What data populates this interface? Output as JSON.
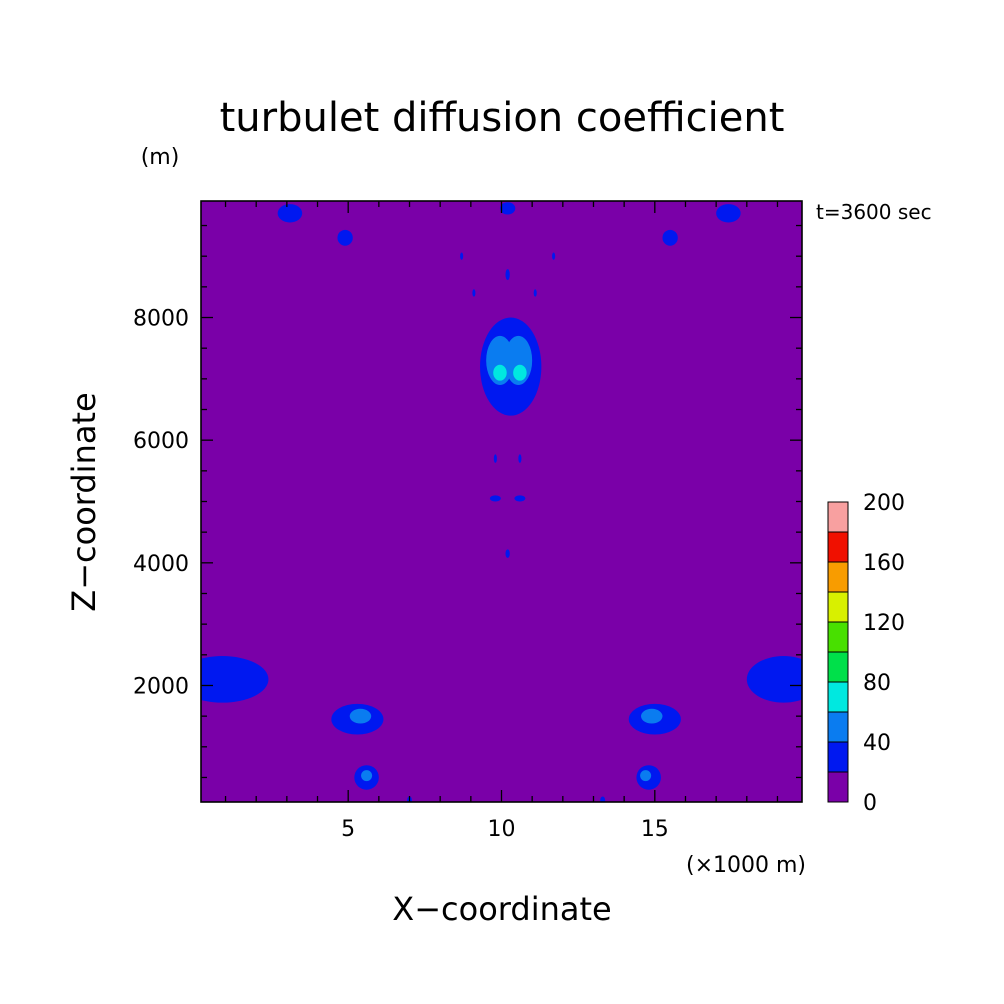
{
  "chart_data": {
    "type": "heatmap",
    "title": "turbulet diffusion coefficient",
    "xlabel": "X−coordinate",
    "ylabel": "Z−coordinate",
    "x_unit": "(×1000 m)",
    "y_unit": "(m)",
    "time_label": "t=3600 sec",
    "xlim": [
      0.2,
      19.8
    ],
    "ylim": [
      100,
      9900
    ],
    "xticks": [
      {
        "value": 5,
        "label": "5"
      },
      {
        "value": 10,
        "label": "10"
      },
      {
        "value": 15,
        "label": "15"
      }
    ],
    "yticks": [
      {
        "value": 2000,
        "label": "2000"
      },
      {
        "value": 4000,
        "label": "4000"
      },
      {
        "value": 6000,
        "label": "6000"
      },
      {
        "value": 8000,
        "label": "8000"
      }
    ],
    "colorbar": {
      "levels": [
        0,
        20,
        40,
        60,
        80,
        100,
        120,
        140,
        160,
        180,
        200
      ],
      "colors": [
        "#7a00a8",
        "#0018f0",
        "#0a7cf0",
        "#00e8e0",
        "#00e04a",
        "#48e000",
        "#d8f000",
        "#f89c00",
        "#f01000",
        "#f8a0a0"
      ],
      "labels": [
        {
          "value": 0,
          "label": "0"
        },
        {
          "value": 40,
          "label": "40"
        },
        {
          "value": 80,
          "label": "80"
        },
        {
          "value": 120,
          "label": "120"
        },
        {
          "value": 160,
          "label": "160"
        },
        {
          "value": 200,
          "label": "200"
        }
      ]
    },
    "background_level": 0,
    "features": [
      {
        "x": 10.3,
        "y": 7200,
        "rx": 1.0,
        "ry": 800,
        "level": 20
      },
      {
        "x": 9.95,
        "y": 7300,
        "rx": 0.45,
        "ry": 400,
        "level": 40
      },
      {
        "x": 10.55,
        "y": 7300,
        "rx": 0.45,
        "ry": 400,
        "level": 40
      },
      {
        "x": 9.95,
        "y": 7100,
        "rx": 0.22,
        "ry": 130,
        "level": 60
      },
      {
        "x": 10.6,
        "y": 7100,
        "rx": 0.22,
        "ry": 130,
        "level": 60
      },
      {
        "x": 5.3,
        "y": 1450,
        "rx": 0.85,
        "ry": 250,
        "level": 20
      },
      {
        "x": 5.4,
        "y": 1500,
        "rx": 0.35,
        "ry": 120,
        "level": 40
      },
      {
        "x": 15.0,
        "y": 1450,
        "rx": 0.85,
        "ry": 250,
        "level": 20
      },
      {
        "x": 14.9,
        "y": 1500,
        "rx": 0.35,
        "ry": 120,
        "level": 40
      },
      {
        "x": 5.6,
        "y": 500,
        "rx": 0.4,
        "ry": 200,
        "level": 20
      },
      {
        "x": 5.6,
        "y": 530,
        "rx": 0.18,
        "ry": 90,
        "level": 40
      },
      {
        "x": 14.8,
        "y": 500,
        "rx": 0.4,
        "ry": 200,
        "level": 20
      },
      {
        "x": 14.7,
        "y": 530,
        "rx": 0.18,
        "ry": 90,
        "level": 40
      },
      {
        "x": 0.9,
        "y": 2100,
        "rx": 1.5,
        "ry": 380,
        "level": 20
      },
      {
        "x": 19.2,
        "y": 2100,
        "rx": 1.2,
        "ry": 380,
        "level": 20
      },
      {
        "x": 3.1,
        "y": 9700,
        "rx": 0.4,
        "ry": 150,
        "level": 20
      },
      {
        "x": 17.4,
        "y": 9700,
        "rx": 0.4,
        "ry": 150,
        "level": 20
      },
      {
        "x": 4.9,
        "y": 9300,
        "rx": 0.25,
        "ry": 130,
        "level": 20
      },
      {
        "x": 15.5,
        "y": 9300,
        "rx": 0.25,
        "ry": 130,
        "level": 20
      },
      {
        "x": 10.2,
        "y": 9780,
        "rx": 0.25,
        "ry": 100,
        "level": 20
      },
      {
        "x": 9.8,
        "y": 5050,
        "rx": 0.18,
        "ry": 50,
        "level": 20
      },
      {
        "x": 10.6,
        "y": 5050,
        "rx": 0.18,
        "ry": 50,
        "level": 20
      },
      {
        "x": 10.2,
        "y": 4150,
        "rx": 0.07,
        "ry": 70,
        "level": 20
      },
      {
        "x": 10.2,
        "y": 8700,
        "rx": 0.07,
        "ry": 90,
        "level": 20
      },
      {
        "x": 9.8,
        "y": 5700,
        "rx": 0.05,
        "ry": 70,
        "level": 20
      },
      {
        "x": 10.6,
        "y": 5700,
        "rx": 0.05,
        "ry": 70,
        "level": 20
      },
      {
        "x": 9.1,
        "y": 8400,
        "rx": 0.05,
        "ry": 60,
        "level": 20
      },
      {
        "x": 11.1,
        "y": 8400,
        "rx": 0.05,
        "ry": 60,
        "level": 20
      },
      {
        "x": 8.7,
        "y": 9000,
        "rx": 0.05,
        "ry": 60,
        "level": 20
      },
      {
        "x": 11.7,
        "y": 9000,
        "rx": 0.05,
        "ry": 60,
        "level": 20
      },
      {
        "x": 7.0,
        "y": 130,
        "rx": 0.08,
        "ry": 60,
        "level": 20
      },
      {
        "x": 13.3,
        "y": 130,
        "rx": 0.08,
        "ry": 60,
        "level": 20
      }
    ]
  }
}
